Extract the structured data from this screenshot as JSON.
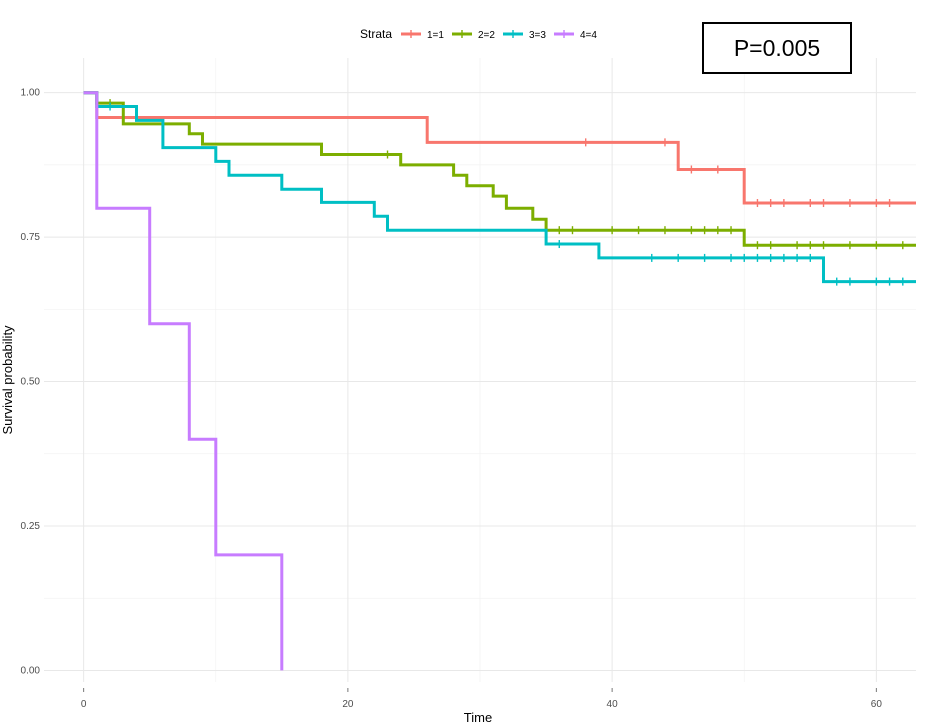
{
  "chart_data": {
    "type": "line",
    "subtype": "kaplan-meier-step",
    "title": "",
    "xlabel": "Time",
    "ylabel": "Survival probability",
    "xlim": [
      -3,
      63
    ],
    "ylim": [
      -0.02,
      1.06
    ],
    "x_ticks": [
      0,
      20,
      40,
      60
    ],
    "x_tick_labels": [
      "0",
      "20",
      "40",
      "60"
    ],
    "y_ticks": [
      0.0,
      0.25,
      0.5,
      0.75,
      1.0
    ],
    "y_tick_labels": [
      "0.00",
      "0.25",
      "0.50",
      "0.75",
      "1.00"
    ],
    "grid": true,
    "legend": {
      "title": "Strata",
      "position": "top",
      "entries": [
        "1=1",
        "2=2",
        "3=3",
        "4=4"
      ]
    },
    "annotation": "P=0.005",
    "series": [
      {
        "name": "1=1",
        "color": "#F8766D",
        "steps": [
          [
            0,
            1.0
          ],
          [
            1,
            0.957
          ],
          [
            26,
            0.914
          ],
          [
            45,
            0.867
          ],
          [
            50,
            0.809
          ],
          [
            63,
            0.809
          ]
        ],
        "censor_times": [
          38,
          44,
          46,
          48,
          51,
          52,
          53,
          55,
          56,
          58,
          60,
          61
        ]
      },
      {
        "name": "2=2",
        "color": "#7CAE00",
        "steps": [
          [
            0,
            1.0
          ],
          [
            1,
            0.982
          ],
          [
            3,
            0.946
          ],
          [
            6,
            0.946
          ],
          [
            8,
            0.929
          ],
          [
            9,
            0.911
          ],
          [
            18,
            0.893
          ],
          [
            24,
            0.875
          ],
          [
            28,
            0.857
          ],
          [
            29,
            0.839
          ],
          [
            31,
            0.821
          ],
          [
            32,
            0.8
          ],
          [
            34,
            0.781
          ],
          [
            35,
            0.762
          ],
          [
            50,
            0.736
          ],
          [
            63,
            0.736
          ]
        ],
        "censor_times": [
          2,
          23,
          36,
          37,
          40,
          42,
          44,
          46,
          47,
          48,
          49,
          51,
          52,
          54,
          55,
          56,
          58,
          60,
          62
        ]
      },
      {
        "name": "3=3",
        "color": "#00BFC4",
        "steps": [
          [
            0,
            1.0
          ],
          [
            1,
            0.976
          ],
          [
            4,
            0.952
          ],
          [
            6,
            0.905
          ],
          [
            10,
            0.881
          ],
          [
            11,
            0.857
          ],
          [
            15,
            0.833
          ],
          [
            18,
            0.81
          ],
          [
            22,
            0.786
          ],
          [
            23,
            0.762
          ],
          [
            35,
            0.738
          ],
          [
            39,
            0.714
          ],
          [
            56,
            0.673
          ],
          [
            63,
            0.673
          ]
        ],
        "censor_times": [
          2,
          36,
          43,
          45,
          47,
          49,
          50,
          51,
          52,
          53,
          54,
          55,
          57,
          58,
          60,
          61,
          62
        ]
      },
      {
        "name": "4=4",
        "color": "#C77CFF",
        "steps": [
          [
            0,
            1.0
          ],
          [
            1,
            0.8
          ],
          [
            5,
            0.6
          ],
          [
            8,
            0.4
          ],
          [
            10,
            0.2
          ],
          [
            15,
            0.0
          ]
        ],
        "censor_times": []
      }
    ]
  }
}
